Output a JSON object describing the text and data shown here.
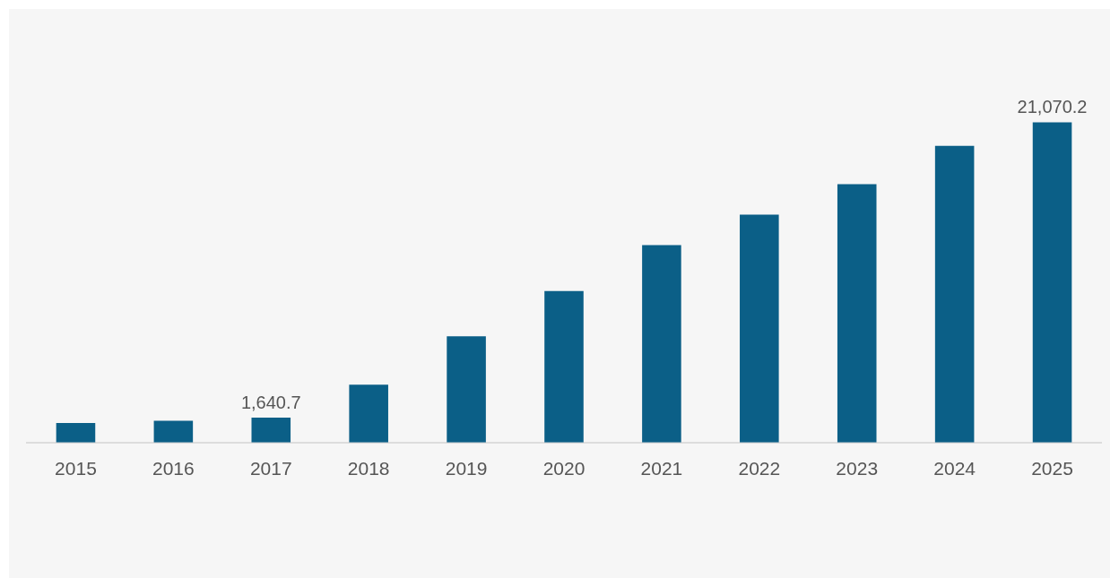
{
  "chart_data": {
    "type": "bar",
    "categories": [
      "2015",
      "2016",
      "2017",
      "2018",
      "2019",
      "2020",
      "2021",
      "2022",
      "2023",
      "2024",
      "2025"
    ],
    "values": [
      1285,
      1439,
      1640.7,
      3803,
      6989,
      9970,
      13002,
      15006,
      17010,
      19528,
      21070.2
    ],
    "value_labels": [
      null,
      null,
      "1,640.7",
      null,
      null,
      null,
      null,
      null,
      null,
      null,
      "21,070.2"
    ],
    "color": "#0b5f87",
    "tick_labels": "x"
  }
}
